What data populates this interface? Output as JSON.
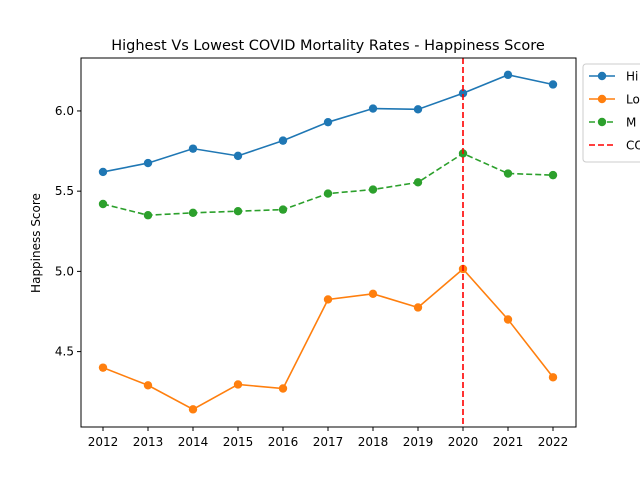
{
  "chart_data": {
    "type": "line",
    "title": "Highest Vs Lowest COVID Mortality Rates - Happiness Score",
    "xlabel": "",
    "ylabel": "Happiness Score",
    "categories": [
      "2012",
      "2013",
      "2014",
      "2015",
      "2016",
      "2017",
      "2018",
      "2019",
      "2020",
      "2021",
      "2022"
    ],
    "ylim": [
      4.03,
      6.33
    ],
    "yticks": [
      "4.5",
      "5.0",
      "5.5",
      "6.0"
    ],
    "grid": false,
    "legend_position": "outside-top-right",
    "series": [
      {
        "name": "Hi",
        "color": "#1f77b4",
        "style": "solid",
        "marker": "circle",
        "values": [
          5.62,
          5.675,
          5.765,
          5.72,
          5.815,
          5.93,
          6.015,
          6.01,
          6.11,
          6.225,
          6.165
        ]
      },
      {
        "name": "Lo",
        "color": "#ff7f0e",
        "style": "solid",
        "marker": "circle",
        "values": [
          4.4,
          4.29,
          4.14,
          4.295,
          4.27,
          4.825,
          4.86,
          4.775,
          5.015,
          4.7,
          4.34
        ]
      },
      {
        "name": "M",
        "color": "#2ca02c",
        "style": "dashed",
        "marker": "circle",
        "values": [
          5.42,
          5.35,
          5.365,
          5.375,
          5.385,
          5.485,
          5.51,
          5.555,
          5.735,
          5.61,
          5.6
        ]
      }
    ],
    "annotations": [
      {
        "type": "vline",
        "x": "2020",
        "name": "CO",
        "color": "#ff0000",
        "style": "dashed"
      }
    ]
  }
}
